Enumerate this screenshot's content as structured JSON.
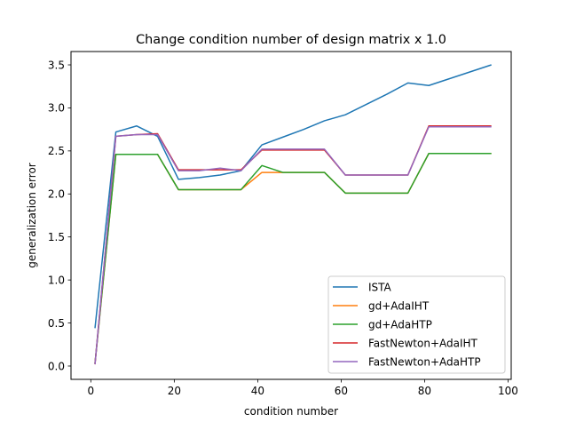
{
  "chart_data": {
    "type": "line",
    "title": "Change condition number of design matrix x 1.0",
    "xlabel": "condition number",
    "ylabel": "generalization error",
    "xlim": [
      -4.75,
      100.75
    ],
    "ylim": [
      -0.155,
      3.655
    ],
    "xticks": [
      0,
      20,
      40,
      60,
      80,
      100
    ],
    "yticks": [
      0.0,
      0.5,
      1.0,
      1.5,
      2.0,
      2.5,
      3.0,
      3.5
    ],
    "x": [
      1,
      6,
      11,
      16,
      21,
      26,
      31,
      36,
      41,
      46,
      51,
      56,
      61,
      66,
      71,
      76,
      81,
      86,
      91,
      96
    ],
    "grid": false,
    "legend": "lower-right",
    "series": [
      {
        "name": "ISTA",
        "color": "#1f77b4",
        "values": [
          0.44,
          2.72,
          2.79,
          2.67,
          2.17,
          2.19,
          2.22,
          2.27,
          2.57,
          2.66,
          2.75,
          2.85,
          2.92,
          3.04,
          3.16,
          3.29,
          3.26,
          3.34,
          3.42,
          3.5
        ]
      },
      {
        "name": "gd+AdaIHT",
        "color": "#ff7f0e",
        "values": [
          0.03,
          2.46,
          2.46,
          2.46,
          2.05,
          2.05,
          2.05,
          2.05,
          2.25,
          2.25,
          2.25,
          2.25,
          2.01,
          2.01,
          2.01,
          2.01,
          2.47,
          2.47,
          2.47,
          2.47
        ]
      },
      {
        "name": "gd+AdaHTP",
        "color": "#2ca02c",
        "values": [
          0.03,
          2.46,
          2.46,
          2.46,
          2.05,
          2.05,
          2.05,
          2.05,
          2.33,
          2.25,
          2.25,
          2.25,
          2.01,
          2.01,
          2.01,
          2.01,
          2.47,
          2.47,
          2.47,
          2.47
        ]
      },
      {
        "name": "FastNewton+AdaIHT",
        "color": "#d62728",
        "values": [
          0.02,
          2.67,
          2.69,
          2.7,
          2.28,
          2.28,
          2.28,
          2.28,
          2.51,
          2.51,
          2.51,
          2.51,
          2.22,
          2.22,
          2.22,
          2.22,
          2.79,
          2.79,
          2.79,
          2.79
        ]
      },
      {
        "name": "FastNewton+AdaHTP",
        "color": "#9467bd",
        "values": [
          0.02,
          2.67,
          2.69,
          2.69,
          2.27,
          2.27,
          2.3,
          2.27,
          2.52,
          2.52,
          2.52,
          2.52,
          2.22,
          2.22,
          2.22,
          2.22,
          2.78,
          2.78,
          2.78,
          2.78
        ]
      }
    ]
  }
}
